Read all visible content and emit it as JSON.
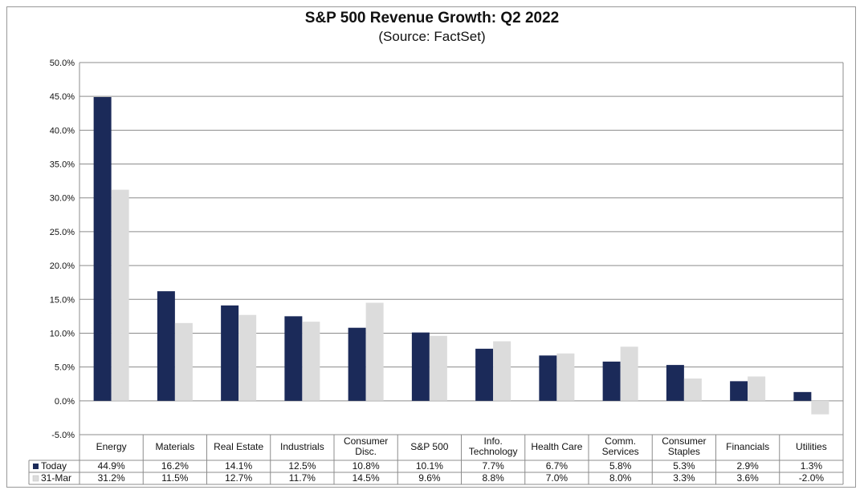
{
  "chart_data": {
    "type": "bar",
    "title": "S&P 500 Revenue Growth: Q2 2022",
    "subtitle": "(Source: FactSet)",
    "categories": [
      [
        "Energy"
      ],
      [
        "Materials"
      ],
      [
        "Real Estate"
      ],
      [
        "Industrials"
      ],
      [
        "Consumer",
        "Disc."
      ],
      [
        "S&P 500"
      ],
      [
        "Info.",
        "Technology"
      ],
      [
        "Health Care"
      ],
      [
        "Comm.",
        "Services"
      ],
      [
        "Consumer",
        "Staples"
      ],
      [
        "Financials"
      ],
      [
        "Utilities"
      ]
    ],
    "series": [
      {
        "name": "Today",
        "color": "#1b2a59",
        "values": [
          44.9,
          16.2,
          14.1,
          12.5,
          10.8,
          10.1,
          7.7,
          6.7,
          5.8,
          5.3,
          2.9,
          1.3
        ],
        "labels": [
          "44.9%",
          "16.2%",
          "14.1%",
          "12.5%",
          "10.8%",
          "10.1%",
          "7.7%",
          "6.7%",
          "5.8%",
          "5.3%",
          "2.9%",
          "1.3%"
        ]
      },
      {
        "name": "31-Mar",
        "color": "#dcdcdc",
        "values": [
          31.2,
          11.5,
          12.7,
          11.7,
          14.5,
          9.6,
          8.8,
          7.0,
          8.0,
          3.3,
          3.6,
          -2.0
        ],
        "labels": [
          "31.2%",
          "11.5%",
          "12.7%",
          "11.7%",
          "14.5%",
          "9.6%",
          "8.8%",
          "7.0%",
          "8.0%",
          "3.3%",
          "3.6%",
          "-2.0%"
        ]
      }
    ],
    "ylim": [
      -5,
      50
    ],
    "ytick_labels": [
      "-5.0%",
      "0.0%",
      "5.0%",
      "10.0%",
      "15.0%",
      "20.0%",
      "25.0%",
      "30.0%",
      "35.0%",
      "40.0%",
      "45.0%",
      "50.0%"
    ],
    "grid": true,
    "legend": "data-table"
  }
}
